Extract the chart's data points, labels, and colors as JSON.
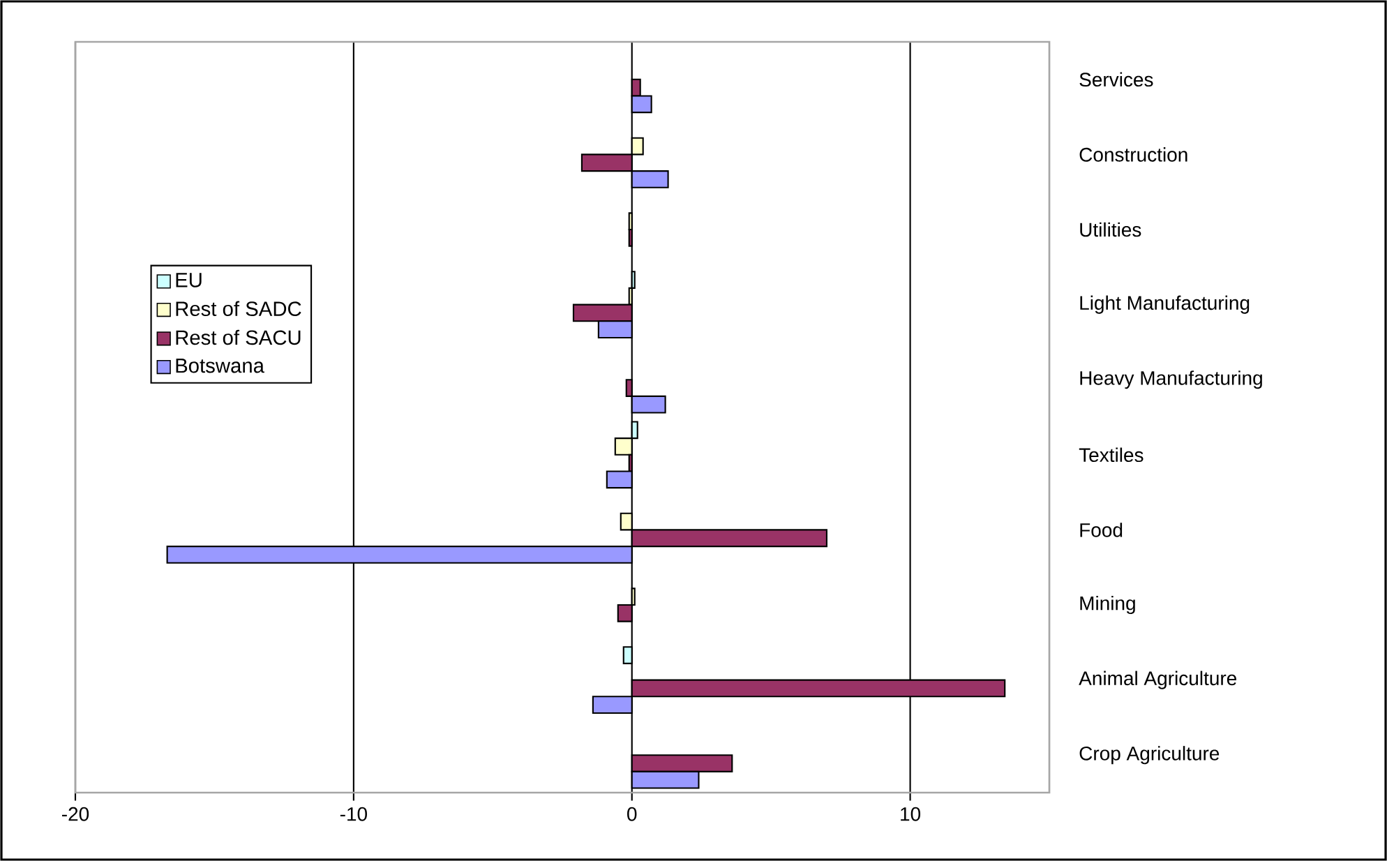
{
  "chart_data": {
    "type": "bar",
    "orientation": "horizontal",
    "categories": [
      "Services",
      "Construction",
      "Utilities",
      "Light Manufacturing",
      "Heavy Manufacturing",
      "Textiles",
      "Food",
      "Mining",
      "Animal Agriculture",
      "Crop Agriculture"
    ],
    "series": [
      {
        "name": "EU",
        "color": "#ccffff",
        "values": [
          null,
          null,
          null,
          0.1,
          null,
          0.2,
          null,
          null,
          -0.3,
          null
        ]
      },
      {
        "name": "Rest of SADC",
        "color": "#ffffcc",
        "values": [
          null,
          0.4,
          -0.1,
          -0.1,
          null,
          -0.6,
          -0.4,
          0.1,
          null,
          null
        ]
      },
      {
        "name": "Rest of SACU",
        "color": "#993366",
        "values": [
          0.3,
          -1.8,
          -0.1,
          -2.1,
          -0.2,
          -0.1,
          7.0,
          -0.5,
          13.4,
          3.6
        ]
      },
      {
        "name": "Botswana",
        "color": "#9999ff",
        "values": [
          0.7,
          1.3,
          null,
          -1.2,
          1.2,
          -0.9,
          -16.7,
          null,
          -1.4,
          2.4
        ]
      }
    ],
    "xlim": [
      -20,
      15
    ],
    "xticks": [
      -20,
      -10,
      0,
      10
    ],
    "grid": "x",
    "legend": "left"
  }
}
